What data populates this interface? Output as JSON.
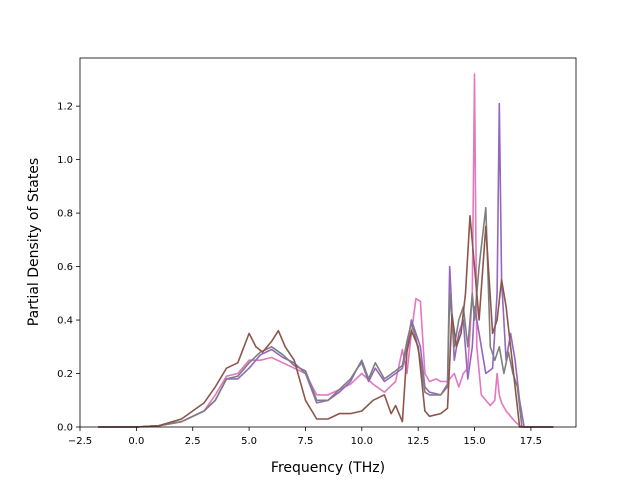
{
  "chart_data": {
    "type": "line",
    "title": "",
    "xlabel": "Frequency (THz)",
    "ylabel": "Partial Density of States",
    "xlim": [
      -2.5,
      19.5
    ],
    "ylim": [
      0.0,
      1.38
    ],
    "xticks": [
      -2.5,
      0.0,
      2.5,
      5.0,
      7.5,
      10.0,
      12.5,
      15.0,
      17.5
    ],
    "xtick_labels": [
      "−2.5",
      "0.0",
      "2.5",
      "5.0",
      "7.5",
      "10.0",
      "12.5",
      "15.0",
      "17.5"
    ],
    "yticks": [
      0.0,
      0.2,
      0.4,
      0.6,
      0.8,
      1.0,
      1.2
    ],
    "ytick_labels": [
      "0.0",
      "0.2",
      "0.4",
      "0.6",
      "0.8",
      "1.0",
      "1.2"
    ],
    "grid": false,
    "legend": "none",
    "series": [
      {
        "color": "#e377c2",
        "x": [
          -1.7,
          0.0,
          1.0,
          2.0,
          3.0,
          3.5,
          4.0,
          4.5,
          5.0,
          5.5,
          6.0,
          6.5,
          7.0,
          7.5,
          8.0,
          8.5,
          9.0,
          9.5,
          10.0,
          10.5,
          11.0,
          11.5,
          11.8,
          12.0,
          12.2,
          12.4,
          12.6,
          12.8,
          13.0,
          13.3,
          13.5,
          13.8,
          13.9,
          14.1,
          14.3,
          14.5,
          14.7,
          14.9,
          15.0,
          15.1,
          15.3,
          15.5,
          15.7,
          15.9,
          16.0,
          16.1,
          16.2,
          16.4,
          16.6,
          16.8,
          17.0,
          17.2,
          18.5
        ],
        "y": [
          0.0,
          0.0,
          0.005,
          0.02,
          0.06,
          0.12,
          0.19,
          0.2,
          0.25,
          0.25,
          0.26,
          0.24,
          0.22,
          0.2,
          0.12,
          0.12,
          0.14,
          0.16,
          0.2,
          0.16,
          0.13,
          0.17,
          0.29,
          0.2,
          0.35,
          0.48,
          0.47,
          0.2,
          0.17,
          0.18,
          0.17,
          0.17,
          0.18,
          0.2,
          0.15,
          0.2,
          0.22,
          0.5,
          1.32,
          0.3,
          0.12,
          0.1,
          0.08,
          0.1,
          0.2,
          0.12,
          0.09,
          0.06,
          0.04,
          0.02,
          0.005,
          0.0,
          0.0
        ]
      },
      {
        "color": "#9467bd",
        "x": [
          -1.7,
          0.0,
          1.0,
          2.0,
          3.0,
          3.5,
          4.0,
          4.5,
          5.0,
          5.5,
          6.0,
          6.5,
          7.0,
          7.5,
          8.0,
          8.5,
          9.0,
          9.5,
          9.8,
          10.0,
          10.3,
          10.6,
          11.0,
          11.5,
          11.8,
          12.0,
          12.2,
          12.4,
          12.6,
          12.8,
          13.0,
          13.5,
          13.8,
          13.9,
          14.1,
          14.3,
          14.5,
          14.7,
          14.9,
          15.0,
          15.2,
          15.5,
          15.8,
          16.0,
          16.1,
          16.2,
          16.4,
          16.6,
          16.8,
          17.0,
          17.2,
          18.5
        ],
        "y": [
          0.0,
          0.0,
          0.005,
          0.02,
          0.06,
          0.1,
          0.18,
          0.18,
          0.22,
          0.27,
          0.29,
          0.26,
          0.24,
          0.2,
          0.09,
          0.1,
          0.13,
          0.17,
          0.22,
          0.24,
          0.17,
          0.22,
          0.17,
          0.2,
          0.22,
          0.3,
          0.4,
          0.35,
          0.3,
          0.15,
          0.13,
          0.12,
          0.16,
          0.6,
          0.25,
          0.35,
          0.4,
          0.18,
          0.3,
          0.45,
          0.35,
          0.2,
          0.22,
          0.5,
          1.21,
          0.55,
          0.25,
          0.35,
          0.25,
          0.1,
          0.0,
          0.0
        ]
      },
      {
        "color": "#7f7f7f",
        "x": [
          -1.7,
          0.0,
          1.0,
          2.0,
          3.0,
          3.5,
          4.0,
          4.5,
          5.0,
          5.5,
          6.0,
          6.5,
          7.0,
          7.5,
          8.0,
          8.5,
          9.0,
          9.5,
          9.8,
          10.0,
          10.3,
          10.6,
          11.0,
          11.5,
          11.8,
          12.0,
          12.2,
          12.4,
          12.6,
          12.8,
          13.0,
          13.5,
          13.8,
          13.9,
          14.1,
          14.3,
          14.5,
          14.7,
          14.9,
          15.0,
          15.2,
          15.5,
          15.7,
          15.9,
          16.1,
          16.3,
          16.5,
          16.7,
          16.9,
          17.1,
          18.5
        ],
        "y": [
          0.0,
          0.0,
          0.005,
          0.02,
          0.06,
          0.1,
          0.18,
          0.19,
          0.24,
          0.28,
          0.3,
          0.27,
          0.23,
          0.21,
          0.1,
          0.1,
          0.14,
          0.18,
          0.22,
          0.25,
          0.18,
          0.24,
          0.18,
          0.21,
          0.23,
          0.32,
          0.39,
          0.33,
          0.25,
          0.13,
          0.12,
          0.12,
          0.15,
          0.5,
          0.3,
          0.4,
          0.45,
          0.3,
          0.5,
          0.4,
          0.6,
          0.82,
          0.3,
          0.25,
          0.3,
          0.2,
          0.28,
          0.2,
          0.15,
          0.0,
          0.0
        ]
      },
      {
        "color": "#8c564b",
        "x": [
          -1.7,
          0.0,
          1.0,
          2.0,
          3.0,
          3.5,
          4.0,
          4.5,
          5.0,
          5.3,
          5.6,
          6.0,
          6.3,
          6.6,
          7.0,
          7.5,
          8.0,
          8.5,
          9.0,
          9.5,
          10.0,
          10.5,
          11.0,
          11.3,
          11.5,
          11.8,
          12.0,
          12.2,
          12.5,
          12.8,
          13.0,
          13.5,
          13.8,
          14.0,
          14.2,
          14.4,
          14.6,
          14.8,
          15.0,
          15.2,
          15.5,
          15.8,
          16.0,
          16.2,
          16.4,
          16.6,
          16.8,
          17.0,
          18.5
        ],
        "y": [
          0.0,
          0.0,
          0.005,
          0.03,
          0.09,
          0.15,
          0.22,
          0.24,
          0.35,
          0.3,
          0.28,
          0.32,
          0.36,
          0.3,
          0.25,
          0.1,
          0.03,
          0.03,
          0.05,
          0.05,
          0.06,
          0.1,
          0.12,
          0.05,
          0.08,
          0.02,
          0.28,
          0.36,
          0.3,
          0.06,
          0.04,
          0.05,
          0.07,
          0.42,
          0.3,
          0.35,
          0.5,
          0.79,
          0.6,
          0.4,
          0.75,
          0.35,
          0.4,
          0.55,
          0.45,
          0.3,
          0.15,
          0.0,
          0.0
        ]
      }
    ]
  }
}
